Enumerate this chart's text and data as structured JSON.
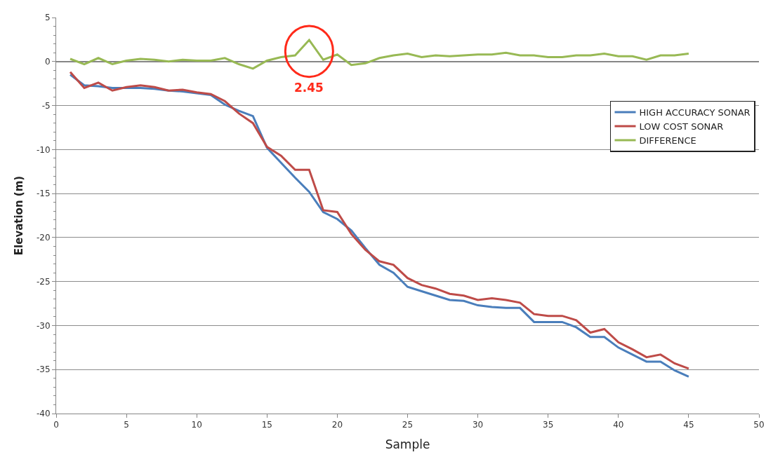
{
  "chart_data": {
    "type": "line",
    "xlabel": "Sample",
    "ylabel": "Elevation (m)",
    "x": [
      1,
      2,
      3,
      4,
      5,
      6,
      7,
      8,
      9,
      10,
      11,
      12,
      13,
      14,
      15,
      16,
      17,
      18,
      19,
      20,
      21,
      22,
      23,
      24,
      25,
      26,
      27,
      28,
      29,
      30,
      31,
      32,
      33,
      34,
      35,
      36,
      37,
      38,
      39,
      40,
      41,
      42,
      43,
      44,
      45
    ],
    "series": [
      {
        "name": "HIGH ACCURACY SONAR",
        "color": "#4a7ebb",
        "values": [
          -1.5,
          -2.7,
          -2.8,
          -3.0,
          -3.0,
          -3.0,
          -3.1,
          -3.3,
          -3.4,
          -3.6,
          -3.8,
          -4.9,
          -5.6,
          -6.2,
          -9.8,
          -11.5,
          -13.2,
          -14.8,
          -17.1,
          -17.9,
          -19.2,
          -21.2,
          -23.1,
          -24.0,
          -25.6,
          -26.1,
          -26.6,
          -27.1,
          -27.2,
          -27.7,
          -27.9,
          -28.0,
          -28.0,
          -29.6,
          -29.6,
          -29.6,
          -30.2,
          -31.3,
          -31.3,
          -32.5,
          -33.3,
          -34.1,
          -34.1,
          -35.1,
          -35.8
        ]
      },
      {
        "name": "LOW COST SONAR",
        "color": "#be4b48",
        "values": [
          -1.2,
          -3.0,
          -2.4,
          -3.3,
          -2.9,
          -2.7,
          -2.9,
          -3.3,
          -3.2,
          -3.5,
          -3.7,
          -4.5,
          -5.9,
          -7.0,
          -9.7,
          -10.7,
          -12.3,
          -12.3,
          -16.9,
          -17.1,
          -19.6,
          -21.4,
          -22.7,
          -23.1,
          -24.6,
          -25.4,
          -25.8,
          -26.4,
          -26.6,
          -27.1,
          -26.9,
          -27.1,
          -27.4,
          -28.7,
          -28.9,
          -28.9,
          -29.4,
          -30.8,
          -30.4,
          -31.9,
          -32.7,
          -33.6,
          -33.3,
          -34.3,
          -34.9
        ]
      },
      {
        "name": "DIFFERENCE",
        "color": "#98b954",
        "values": [
          0.3,
          -0.3,
          0.4,
          -0.3,
          0.1,
          0.3,
          0.2,
          0.0,
          0.2,
          0.1,
          0.1,
          0.4,
          -0.3,
          -0.8,
          0.1,
          0.5,
          0.7,
          2.45,
          0.2,
          0.8,
          -0.4,
          -0.2,
          0.4,
          0.7,
          0.9,
          0.5,
          0.7,
          0.6,
          0.7,
          0.8,
          0.8,
          1.0,
          0.7,
          0.7,
          0.5,
          0.5,
          0.7,
          0.7,
          0.9,
          0.6,
          0.6,
          0.2,
          0.7,
          0.7,
          0.9
        ]
      }
    ],
    "annotations": [
      "2.45"
    ],
    "xlim": [
      0,
      50
    ],
    "xticks": [
      0,
      5,
      10,
      15,
      20,
      25,
      30,
      35,
      40,
      45,
      50
    ],
    "ylim": [
      -40,
      5
    ],
    "yticks": [
      -40,
      -35,
      -30,
      -25,
      -20,
      -15,
      -10,
      -5,
      0,
      5
    ],
    "grid": "y",
    "legend": "top right",
    "marker": "none",
    "line_style": "solid"
  }
}
